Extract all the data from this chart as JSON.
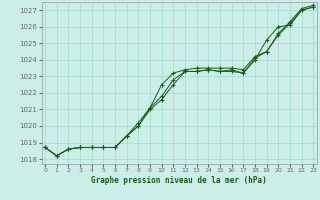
{
  "xlabel": "Graphe pression niveau de la mer (hPa)",
  "background_color": "#cceee8",
  "grid_color": "#aaddcc",
  "line_color": "#1a5c1a",
  "marker_color": "#1a5c1a",
  "ylim": [
    1017.7,
    1027.5
  ],
  "xlim": [
    -0.3,
    23.3
  ],
  "yticks": [
    1018,
    1019,
    1020,
    1021,
    1022,
    1023,
    1024,
    1025,
    1026,
    1027
  ],
  "xticks": [
    0,
    1,
    2,
    3,
    4,
    5,
    6,
    7,
    8,
    9,
    10,
    11,
    12,
    13,
    14,
    15,
    16,
    17,
    18,
    19,
    20,
    21,
    22,
    23
  ],
  "series": [
    [
      1018.7,
      1018.2,
      1018.6,
      1018.7,
      1018.7,
      1018.7,
      1018.7,
      1019.4,
      1020.0,
      1021.0,
      1021.6,
      1022.5,
      1023.3,
      1023.3,
      1023.4,
      1023.3,
      1023.3,
      1023.2,
      1024.0,
      1025.2,
      1026.0,
      1026.1,
      1027.0,
      1027.2
    ],
    [
      1018.7,
      1018.2,
      1018.6,
      1018.7,
      1018.7,
      1018.7,
      1018.7,
      1019.4,
      1020.0,
      1021.1,
      1021.8,
      1022.8,
      1023.3,
      1023.3,
      1023.4,
      1023.3,
      1023.4,
      1023.2,
      1024.1,
      1024.5,
      1025.5,
      1026.2,
      1027.0,
      1027.2
    ],
    [
      1018.7,
      1018.2,
      1018.6,
      1018.7,
      1018.7,
      1018.7,
      1018.7,
      1019.4,
      1020.2,
      1021.1,
      1022.5,
      1023.2,
      1023.4,
      1023.5,
      1023.5,
      1023.5,
      1023.5,
      1023.4,
      1024.2,
      1024.5,
      1025.6,
      1026.3,
      1027.1,
      1027.3
    ]
  ],
  "figsize": [
    3.2,
    2.0
  ],
  "dpi": 100
}
